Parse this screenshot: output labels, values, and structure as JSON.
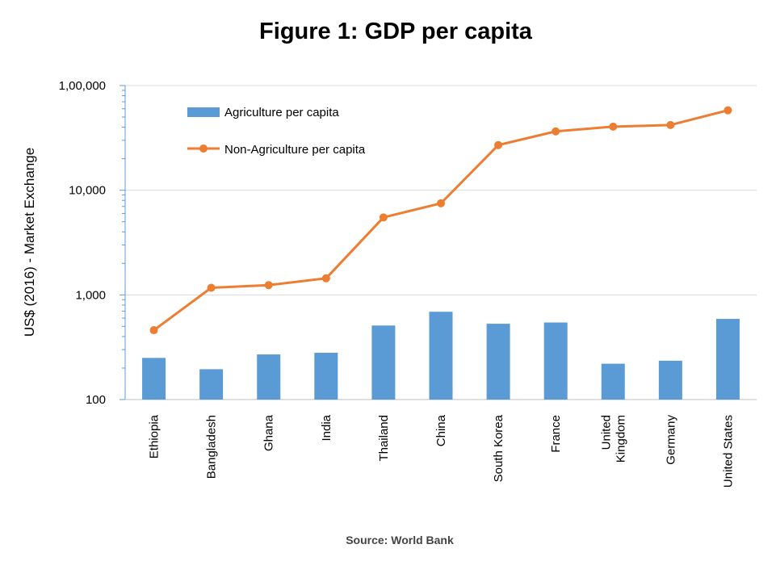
{
  "chart_data": {
    "type": "bar",
    "title": "Figure 1: GDP per capita",
    "ylabel": "US$ (2016) - Market Exchange",
    "xlabel": "",
    "yscale": "log",
    "ylim": [
      100,
      100000
    ],
    "yticks": [
      100,
      1000,
      10000,
      100000
    ],
    "ytick_labels": [
      "100",
      "1,000",
      "10,000",
      "1,00,000"
    ],
    "grid": "horizontal major gridlines",
    "legend_position": "top-left",
    "categories": [
      "Ethiopia",
      "Bangladesh",
      "Ghana",
      "India",
      "Thailand",
      "China",
      "South Korea",
      "France",
      "United Kingdom",
      "Germany",
      "United States"
    ],
    "category_labels": [
      [
        "Ethiopia"
      ],
      [
        "Bangladesh"
      ],
      [
        "Ghana"
      ],
      [
        "India"
      ],
      [
        "Thailand"
      ],
      [
        "China"
      ],
      [
        "South Korea"
      ],
      [
        "France"
      ],
      [
        "United",
        "Kingdom"
      ],
      [
        "Germany"
      ],
      [
        "United States"
      ]
    ],
    "series": [
      {
        "name": "Agriculture per capita",
        "type": "bar",
        "color": "#5B9BD5",
        "values": [
          250,
          195,
          270,
          280,
          510,
          690,
          530,
          545,
          220,
          235,
          590
        ]
      },
      {
        "name": "Non-Agriculture per capita",
        "type": "line",
        "color": "#ED7D31",
        "values": [
          460,
          1170,
          1240,
          1440,
          5500,
          7500,
          27000,
          36500,
          40500,
          42000,
          58000
        ]
      }
    ],
    "source": "Source: World Bank"
  }
}
